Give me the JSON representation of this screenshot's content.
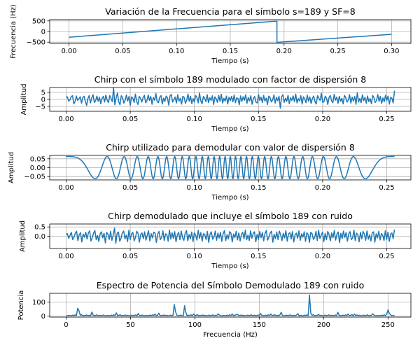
{
  "chart_data": [
    {
      "type": "line",
      "title": "Variación de la Frecuencia para el símbolo s=189 y SF=8",
      "xlabel": "Tiempo (s)",
      "ylabel": "Frecuencia (Hz)",
      "xlim": [
        -0.018,
        0.318
      ],
      "ylim": [
        -560,
        560
      ],
      "xticks": [
        0.0,
        0.05,
        0.1,
        0.15,
        0.2,
        0.25,
        0.3
      ],
      "xtick_labels": [
        "0.00",
        "0.05",
        "0.10",
        "0.15",
        "0.20",
        "0.25",
        "0.30"
      ],
      "yticks": [
        -500,
        0,
        500
      ],
      "ytick_labels": [
        "−500",
        "0",
        "500"
      ],
      "grid": true,
      "color": "#1f77b4",
      "series": [
        {
          "x": [
            0.0,
            0.1934,
            0.1934,
            0.3
          ],
          "y": [
            -270,
            490,
            -510,
            -130
          ]
        }
      ]
    },
    {
      "type": "line",
      "title": "Chirp con el símbolo 189 modulado con factor de dispersión 8",
      "xlabel": "Tiempo (s)",
      "ylabel": "Amplitud",
      "xlim": [
        -0.0128,
        0.2688
      ],
      "ylim": [
        -8.5,
        8.5
      ],
      "xticks": [
        0.0,
        0.05,
        0.1,
        0.15,
        0.2,
        0.25
      ],
      "xtick_labels": [
        "0.00",
        "0.05",
        "0.10",
        "0.15",
        "0.20",
        "0.25"
      ],
      "yticks": [
        -5,
        0,
        5
      ],
      "ytick_labels": [
        "−5",
        "0",
        "5"
      ],
      "grid": true,
      "color": "#1f77b4",
      "series": [
        {
          "x_range": [
            0.0,
            0.256
          ],
          "values": [
            1.5,
            1.8,
            -1.2,
            -0.4,
            2.1,
            2.6,
            -3.2,
            -1.5,
            2.4,
            -0.8,
            0.5,
            1.9,
            -2.7,
            1.2,
            2.3,
            -1.5,
            -4.3,
            0.6,
            2.8,
            -2.5,
            1.1,
            3.4,
            -2.2,
            -0.9,
            2.4,
            -1.4,
            1.6,
            -3.1,
            0.7,
            2.2,
            -1.8,
            3.1,
            -0.5,
            -2.3,
            2.7,
            0.9,
            -1.6,
            8.3,
            -3.9,
            1.2,
            4.5,
            -1.7,
            -3.8,
            2.6,
            1.4,
            -2.7,
            -0.6,
            3.1,
            -1.2,
            2.1,
            -4.2,
            1.8,
            0.9,
            -2.2,
            3.8,
            -1.3,
            -3.6,
            2.2,
            0.8,
            -1.9,
            1.3,
            2.9,
            -2.4,
            -1.1,
            3.2,
            -0.7,
            2.1,
            -3.5,
            1.4,
            -0.6,
            4.2,
            -1.8,
            -2.3,
            1.6,
            2.7,
            -3.3,
            0.9,
            -1.5,
            2.4,
            1.1,
            -4.1,
            2.5,
            3.6,
            -1.9,
            -0.5,
            1.7,
            -2.6,
            3.3,
            -1.2,
            0.8,
            -3.4,
            2.2,
            1.5,
            -2.8,
            -0.7,
            3.9,
            -1.4,
            2.3,
            -3.1,
            0.6,
            -1.9,
            2.8,
            1.3,
            -2.5,
            4.6,
            -1.1,
            -3.2,
            2.1,
            0.9,
            -1.7,
            3.4,
            -2.3,
            1.2,
            -0.8,
            2.6,
            -3.6,
            1.8,
            0.5,
            -2.1,
            2.9,
            -1.4,
            3.7,
            -2.6,
            0.8,
            -1.3,
            2.4,
            -3.3,
            1.6,
            -0.9,
            2.2,
            -1.7,
            3.1,
            -2.4,
            1.1,
            0.6,
            -3.8,
            2.5,
            -1.5,
            1.9,
            -0.6,
            3.3,
            -2.8,
            1.4,
            -1.1,
            2.6,
            -3.5,
            0.7,
            2.1,
            -1.9,
            -2.6,
            3.5,
            -0.8,
            1.6,
            -2.3,
            2.8,
            -1.2,
            0.9,
            -3.7,
            2.4,
            1.3,
            -1.8,
            -0.5,
            3.2,
            -2.7,
            1.5,
            -0.9,
            2.3,
            -6.3,
            1.7,
            3.4,
            -2.2,
            0.8,
            -1.4,
            2.9,
            -3.1,
            1.2,
            -0.7,
            2.5,
            -1.6,
            3.8,
            -2.5,
            0.6,
            -1.2,
            2.7,
            -3.4,
            1.9,
            0.5,
            -2.4,
            3.1,
            -1.3,
            1.8,
            -2.9,
            0.7,
            2.4,
            -1.5,
            -3.3,
            2.6,
            1.1,
            -0.8,
            4.4,
            -2.1,
            -1.7,
            2.3,
            0.9,
            -3.6,
            1.5,
            2.8,
            -1.1,
            -2.4,
            3.6,
            -0.6,
            1.7,
            -2.8,
            2.2,
            -1.4,
            0.8,
            -3.2,
            2.9,
            1.2,
            -1.9,
            -0.5,
            3.4,
            -2.6,
            1.6,
            -1.2,
            2.1,
            -3.5,
            4.7,
            -1.8,
            0.7,
            -2.3,
            3.3,
            -0.9,
            1.4,
            -2.7,
            2.5,
            -1.6,
            0.6,
            -3.1,
            2.8,
            1.3,
            -2.2,
            -0.8,
            3.5,
            -1.5,
            2.2,
            -2.9,
            1.1,
            -1.7,
            3.0,
            -0.7,
            2.4,
            -3.4,
            1.5,
            0.9,
            -2.6,
            6.2
          ]
        }
      ]
    },
    {
      "type": "line",
      "title": "Chirp utilizado para demodular con valor de dispersión 8",
      "xlabel": "Tiempo (s)",
      "ylabel": "Amplitud",
      "xlim": [
        -0.0128,
        0.2688
      ],
      "ylim": [
        -0.069,
        0.069
      ],
      "xticks": [
        0.0,
        0.05,
        0.1,
        0.15,
        0.2,
        0.25
      ],
      "xtick_labels": [
        "0.00",
        "0.05",
        "0.10",
        "0.15",
        "0.20",
        "0.25"
      ],
      "yticks": [
        -0.05,
        0.0,
        0.05
      ],
      "ytick_labels": [
        "−0.05",
        "0.00",
        "0.05"
      ],
      "grid": true,
      "color": "#1f77b4",
      "series": [
        {
          "x_range": [
            0.0,
            0.256
          ],
          "amplitude": 0.0625,
          "symmetric_chirp": true,
          "cycles_per_half": 16,
          "samples": 1200
        }
      ]
    },
    {
      "type": "line",
      "title": "Chirp demodulado que incluye el símbolo 189 con ruido",
      "xlabel": "Tiempo (s)",
      "ylabel": "Amplitud",
      "xlim": [
        -0.0128,
        0.2688
      ],
      "ylim": [
        -0.66,
        0.66
      ],
      "xticks": [
        0.0,
        0.05,
        0.1,
        0.15,
        0.2,
        0.25
      ],
      "xtick_labels": [
        "0.00",
        "0.05",
        "0.10",
        "0.15",
        "0.20",
        "0.25"
      ],
      "yticks": [
        0.0,
        0.5
      ],
      "ytick_labels": [
        "0.0",
        "0.5"
      ],
      "grid": true,
      "color": "#1f77b4",
      "series": [
        {
          "x_range": [
            0.0,
            0.256
          ],
          "values": [
            0.09,
            0.14,
            -0.11,
            0.05,
            0.21,
            -0.18,
            -0.06,
            0.16,
            0.27,
            -0.24,
            0.08,
            0.19,
            -0.31,
            0.12,
            -0.05,
            0.22,
            -0.15,
            0.18,
            0.29,
            -0.26,
            -0.08,
            0.17,
            0.31,
            -0.19,
            0.04,
            -0.28,
            0.13,
            0.24,
            -0.09,
            0.16,
            -0.36,
            0.21,
            0.11,
            -0.17,
            0.26,
            -0.22,
            0.07,
            0.44,
            -0.38,
            0.15,
            0.23,
            -0.27,
            -0.11,
            0.19,
            0.28,
            -0.14,
            0.06,
            -0.29,
            0.33,
            -0.18,
            0.12,
            0.21,
            -0.25,
            -0.07,
            0.27,
            0.16,
            -0.32,
            0.09,
            0.18,
            -0.13,
            0.24,
            -0.21,
            0.05,
            0.3,
            -0.26,
            0.14,
            -0.09,
            0.22,
            0.17,
            -0.34,
            0.11,
            0.26,
            -0.18,
            -0.06,
            0.29,
            -0.23,
            0.13,
            0.08,
            -0.27,
            0.34,
            -0.15,
            0.19,
            -0.11,
            0.25,
            -0.3,
            0.07,
            0.21,
            -0.19,
            0.28,
            -0.08,
            -0.22,
            0.16,
            0.31,
            -0.25,
            0.1,
            -0.14,
            0.23,
            -0.29,
            0.18,
            0.06,
            -0.21,
            0.32,
            -0.12,
            0.2,
            -0.27,
            0.14,
            0.09,
            -0.18,
            0.26,
            -0.33,
            0.11,
            0.24,
            -0.16,
            -0.05,
            0.28,
            -0.22,
            0.17,
            -0.1,
            0.21,
            -0.28,
            0.13,
            0.3,
            -0.24,
            0.08,
            -0.15,
            0.25,
            0.16,
            -0.31,
            0.12,
            -0.07,
            0.27,
            -0.2,
            0.18,
            -0.26,
            0.09,
            0.22,
            -0.14,
            0.33,
            -0.19,
            0.06,
            -0.23,
            0.29,
            -0.11,
            0.15,
            0.24,
            -0.3,
            0.1,
            -0.17,
            0.26,
            -0.08,
            0.2,
            -0.25,
            0.14,
            0.31,
            -0.21,
            -0.06,
            0.18,
            0.27,
            -0.32,
            0.11,
            -0.13,
            0.23,
            -0.18,
            0.28,
            0.07,
            -0.24,
            0.16,
            -0.09,
            0.3,
            -0.27,
            0.12,
            0.2,
            -0.15,
            0.25,
            -0.31,
            0.08,
            0.17,
            -0.11,
            0.29,
            -0.22,
            0.13,
            -0.05,
            0.24,
            -0.28,
            0.19,
            0.1,
            -0.33,
            0.21,
            0.14,
            -0.17,
            -0.07,
            0.27,
            -0.23,
            0.32,
            -0.12,
            0.06,
            0.22,
            -0.29,
            0.15,
            -0.19,
            0.26,
            0.09,
            -0.25,
            0.18,
            -0.08,
            0.31,
            -0.21,
            0.11,
            0.23,
            -0.34,
            0.16,
            -0.13,
            0.28,
            -0.06,
            0.2,
            -0.27,
            0.12,
            0.25,
            -0.18,
            -0.1,
            0.33,
            -0.24,
            0.17,
            0.07,
            -0.3,
            0.21,
            -0.14,
            0.26,
            0.11,
            -0.22,
            0.29,
            -0.16,
            0.08,
            -0.26,
            0.19,
            0.24,
            -0.32,
            0.13,
            -0.09,
            0.27,
            -0.2,
            0.15,
            0.05,
            -0.23,
            0.3,
            -0.17,
            0.22,
            -0.28,
            0.1,
            0.18,
            -0.13,
            0.36
          ]
        }
      ]
    },
    {
      "type": "line",
      "title": "Espectro de Potencia del Símbolo Demodulado 189 con ruido",
      "xlabel": "Frecuencia (Hz)",
      "ylabel": "Potencia",
      "xlim": [
        -12.75,
        267.75
      ],
      "ylim": [
        -8,
        162
      ],
      "xticks": [
        0,
        50,
        100,
        150,
        200,
        250
      ],
      "xtick_labels": [
        "0",
        "50",
        "100",
        "150",
        "200",
        "250"
      ],
      "yticks": [
        0,
        100
      ],
      "ytick_labels": [
        "0",
        "100"
      ],
      "grid": true,
      "color": "#1f77b4",
      "series": [
        {
          "x_range": [
            0,
            255
          ],
          "base": [
            2,
            1,
            4,
            3,
            1,
            6,
            2,
            8,
            3,
            14,
            2,
            5,
            9,
            1,
            4,
            3,
            7,
            2,
            5,
            1,
            3,
            6,
            2,
            4,
            8,
            1,
            5,
            3,
            2,
            7
          ],
          "peaks": [
            [
              9,
              55
            ],
            [
              10,
              38
            ],
            [
              20,
              28
            ],
            [
              39,
              22
            ],
            [
              56,
              18
            ],
            [
              72,
              20
            ],
            [
              84,
              82
            ],
            [
              85,
              30
            ],
            [
              92,
              73
            ],
            [
              93,
              25
            ],
            [
              118,
              15
            ],
            [
              133,
              12
            ],
            [
              151,
              18
            ],
            [
              167,
              26
            ],
            [
              180,
              16
            ],
            [
              189,
              150
            ],
            [
              190,
              20
            ],
            [
              196,
              12
            ],
            [
              211,
              26
            ],
            [
              224,
              14
            ],
            [
              238,
              16
            ],
            [
              250,
              44
            ],
            [
              251,
              18
            ]
          ]
        }
      ]
    }
  ]
}
